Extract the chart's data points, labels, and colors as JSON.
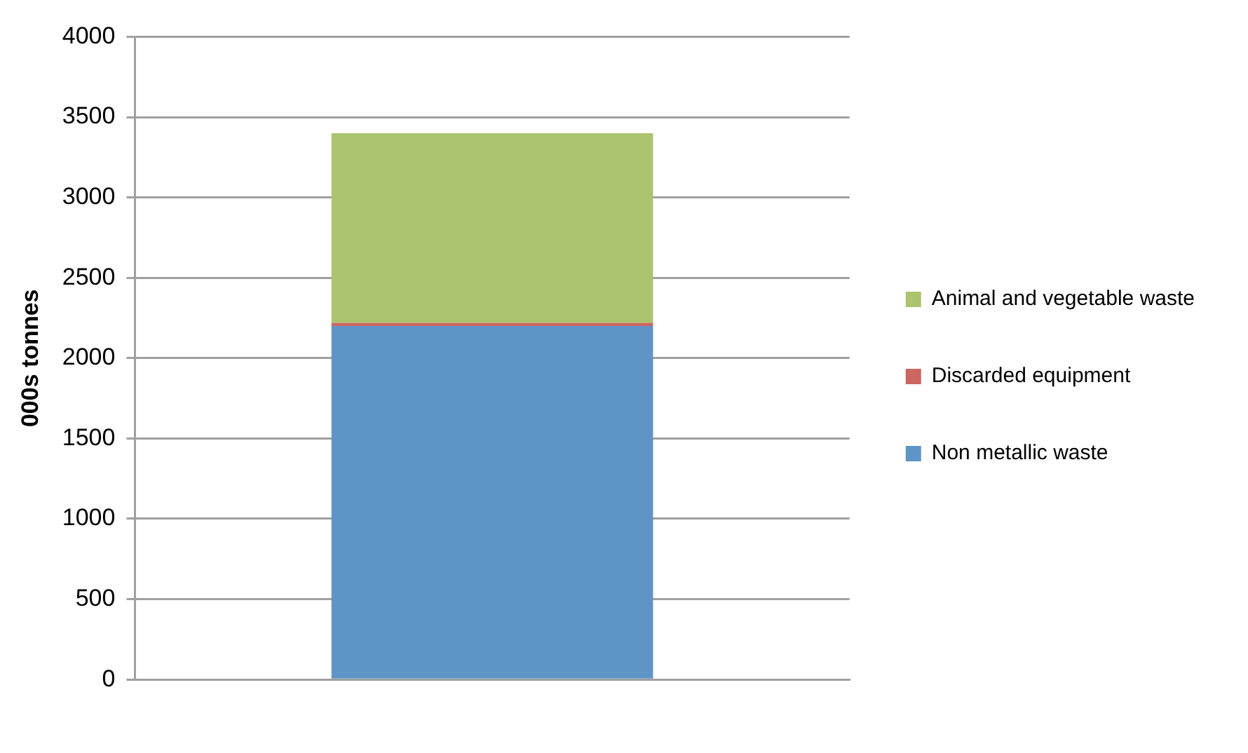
{
  "chart_data": {
    "type": "bar",
    "stacked": true,
    "ylabel": "000s tonnes",
    "categories": [
      null
    ],
    "series": [
      {
        "name": "Non metallic waste",
        "color": "#5f94c7",
        "values": [
          2200
        ]
      },
      {
        "name": "Discarded equipment",
        "color": "#cc6660",
        "values": [
          20
        ]
      },
      {
        "name": "Animal and vegetable waste",
        "color": "#abc46d",
        "values": [
          1180
        ]
      }
    ],
    "ylim": [
      0,
      4000
    ],
    "yticks": [
      0,
      500,
      1000,
      1500,
      2000,
      2500,
      3000,
      3500,
      4000
    ],
    "grid": "y",
    "legend": "right"
  }
}
